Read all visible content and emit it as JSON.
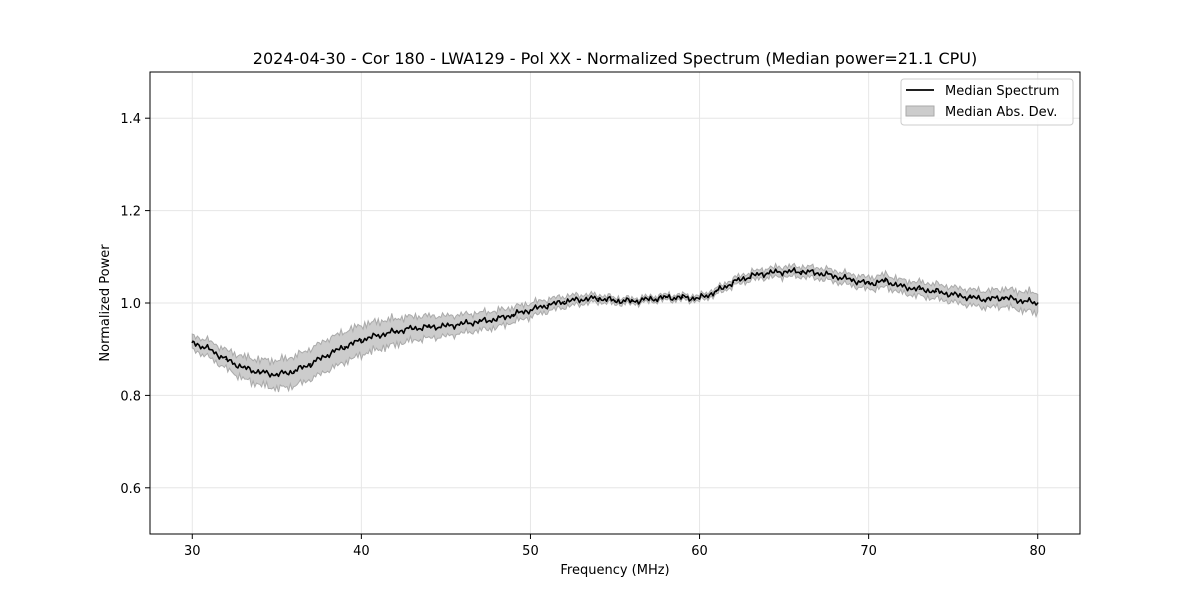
{
  "chart_data": {
    "type": "line",
    "title": "2024-04-30 - Cor 180 - LWA129 - Pol XX - Normalized Spectrum (Median power=21.1 CPU)",
    "xlabel": "Frequency (MHz)",
    "ylabel": "Normalized Power",
    "xlim": [
      27.5,
      82.5
    ],
    "ylim": [
      0.5,
      1.5
    ],
    "x_ticks": [
      30,
      40,
      50,
      60,
      70,
      80
    ],
    "y_ticks": [
      0.6,
      0.8,
      1.0,
      1.2,
      1.4
    ],
    "x_tick_labels": [
      "30",
      "40",
      "50",
      "60",
      "70",
      "80"
    ],
    "y_tick_labels": [
      "0.6",
      "0.8",
      "1.0",
      "1.2",
      "1.4"
    ],
    "grid": true,
    "legend_position": "top-right",
    "series": [
      {
        "name": "Median Spectrum",
        "kind": "line",
        "color": "#000000",
        "x": [
          30,
          31,
          32,
          33,
          34,
          35,
          36,
          37,
          38,
          39,
          40,
          41,
          42,
          43,
          44,
          45,
          46,
          47,
          48,
          49,
          50,
          51,
          52,
          53,
          54,
          55,
          56,
          57,
          58,
          59,
          60,
          61,
          62,
          63,
          64,
          65,
          66,
          67,
          68,
          69,
          70,
          71,
          72,
          73,
          74,
          75,
          76,
          77,
          78,
          79,
          80
        ],
        "y": [
          0.915,
          0.9,
          0.878,
          0.86,
          0.85,
          0.845,
          0.852,
          0.868,
          0.888,
          0.905,
          0.92,
          0.93,
          0.938,
          0.945,
          0.948,
          0.95,
          0.955,
          0.96,
          0.965,
          0.975,
          0.985,
          0.995,
          1.003,
          1.008,
          1.01,
          1.005,
          1.004,
          1.008,
          1.012,
          1.012,
          1.01,
          1.025,
          1.045,
          1.058,
          1.065,
          1.068,
          1.068,
          1.065,
          1.058,
          1.05,
          1.042,
          1.048,
          1.035,
          1.03,
          1.025,
          1.018,
          1.012,
          1.008,
          1.012,
          1.005,
          1.0
        ]
      },
      {
        "name": "Median Abs. Dev.",
        "kind": "band",
        "color": "#cccccc",
        "edge_color": "#aaaaaa",
        "x": [
          30,
          31,
          32,
          33,
          34,
          35,
          36,
          37,
          38,
          39,
          40,
          41,
          42,
          43,
          44,
          45,
          46,
          47,
          48,
          49,
          50,
          51,
          52,
          53,
          54,
          55,
          56,
          57,
          58,
          59,
          60,
          61,
          62,
          63,
          64,
          65,
          66,
          67,
          68,
          69,
          70,
          71,
          72,
          73,
          74,
          75,
          76,
          77,
          78,
          79,
          80
        ],
        "half_width": [
          0.015,
          0.018,
          0.02,
          0.024,
          0.027,
          0.03,
          0.032,
          0.033,
          0.034,
          0.033,
          0.032,
          0.03,
          0.028,
          0.026,
          0.024,
          0.022,
          0.02,
          0.019,
          0.018,
          0.016,
          0.015,
          0.013,
          0.012,
          0.01,
          0.008,
          0.007,
          0.006,
          0.006,
          0.006,
          0.006,
          0.006,
          0.007,
          0.008,
          0.009,
          0.01,
          0.011,
          0.011,
          0.012,
          0.012,
          0.012,
          0.013,
          0.014,
          0.014,
          0.015,
          0.016,
          0.016,
          0.017,
          0.018,
          0.019,
          0.02,
          0.022
        ]
      }
    ]
  }
}
